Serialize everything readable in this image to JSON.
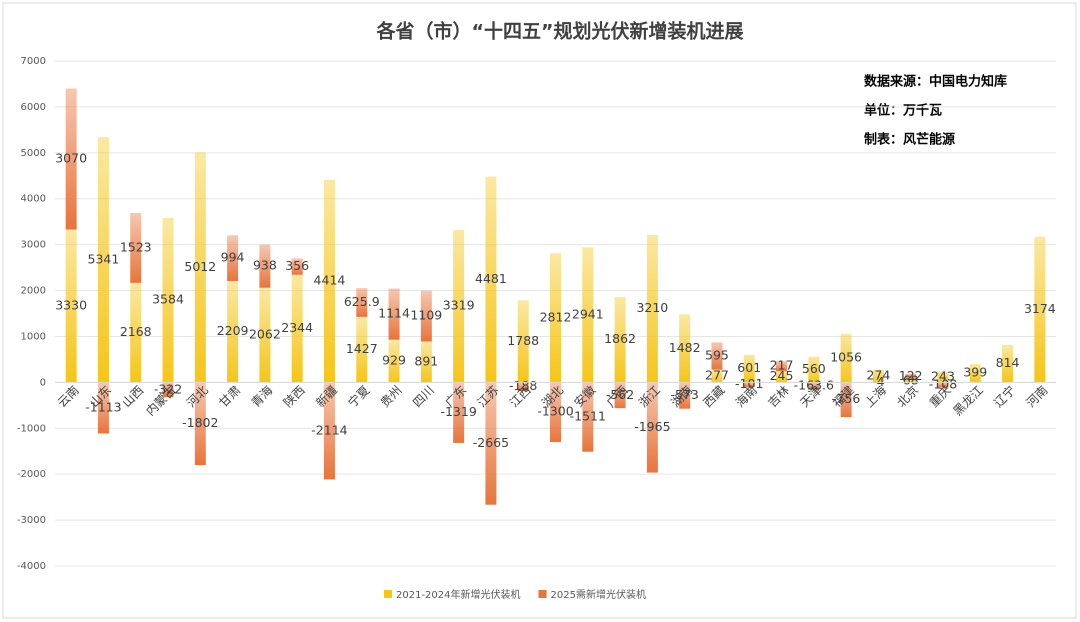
{
  "chart_data": {
    "type": "bar",
    "stacked": true,
    "title": "各省（市）“十四五”规划光伏新增装机进展",
    "annotations": [
      "数据来源：中国电力知库",
      "单位：万千瓦",
      "制表：风芒能源"
    ],
    "categories": [
      "云南",
      "山东",
      "山西",
      "内蒙古",
      "河北",
      "甘肃",
      "青海",
      "陕西",
      "新疆",
      "宁夏",
      "贵州",
      "四川",
      "广东",
      "江苏",
      "江西",
      "湖北",
      "安徽",
      "广西",
      "浙江",
      "湖南",
      "西藏",
      "海南",
      "吉林",
      "天津",
      "福建",
      "上海",
      "北京",
      "重庆",
      "黑龙江",
      "辽宁",
      "河南"
    ],
    "series": [
      {
        "name": "2021-2024年新增光伏装机",
        "color": "#f5c518",
        "values": [
          3330,
          5341,
          2168,
          3584,
          5012,
          2209,
          2062,
          2344,
          4414,
          1427,
          929,
          891,
          3319,
          4481,
          1788,
          2812,
          2941,
          1862,
          3210,
          1482,
          277,
          601,
          245,
          560,
          1056,
          274,
          68,
          243,
          399,
          814,
          3174
        ]
      },
      {
        "name": "2025需新增光伏装机",
        "color": "#e8743b",
        "values": [
          3070,
          -1113,
          1523,
          -322,
          -1802,
          994,
          938,
          356,
          -2114,
          625.9,
          1114,
          1109,
          -1319,
          -2665,
          -188,
          -1300,
          -1511,
          -562,
          -1965,
          -573,
          595,
          -101,
          217,
          -163.6,
          -756,
          -4,
          122,
          -108,
          null,
          null,
          null
        ]
      }
    ],
    "ylim": [
      -4000,
      7000
    ],
    "yticks": [
      -4000,
      -3000,
      -2000,
      -1000,
      0,
      1000,
      2000,
      3000,
      4000,
      5000,
      6000,
      7000
    ],
    "grid": true,
    "legend": "bottom"
  }
}
